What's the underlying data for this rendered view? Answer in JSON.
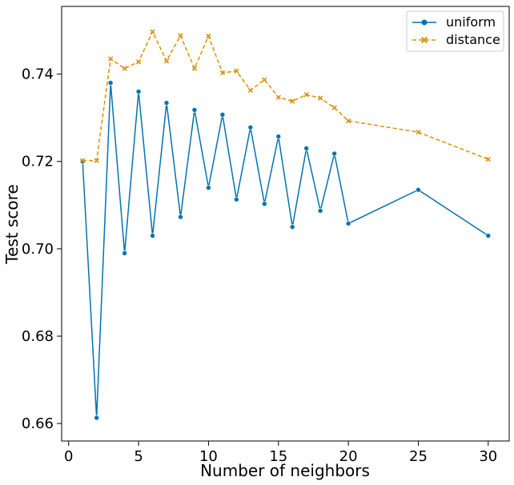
{
  "chart_data": {
    "type": "line",
    "xlabel": "Number of neighbors",
    "ylabel": "Test score",
    "xlim": [
      -0.5,
      31.5
    ],
    "ylim": [
      0.656,
      0.7555
    ],
    "xticks": [
      0,
      5,
      10,
      15,
      20,
      25,
      30
    ],
    "xtick_labels": [
      "0",
      "5",
      "10",
      "15",
      "20",
      "25",
      "30"
    ],
    "yticks": [
      0.66,
      0.68,
      0.7,
      0.72,
      0.74
    ],
    "ytick_labels": [
      "0.66",
      "0.68",
      "0.70",
      "0.72",
      "0.74"
    ],
    "grid": false,
    "legend_position": "top-right",
    "series": [
      {
        "name": "uniform",
        "color": "#0173b2",
        "marker": "circle",
        "linestyle": "solid",
        "x": [
          1,
          2,
          3,
          4,
          5,
          6,
          7,
          8,
          9,
          10,
          11,
          12,
          13,
          14,
          15,
          16,
          17,
          18,
          19,
          20,
          25,
          30
        ],
        "y": [
          0.72,
          0.6613,
          0.738,
          0.699,
          0.736,
          0.703,
          0.7334,
          0.7073,
          0.7318,
          0.714,
          0.7307,
          0.7113,
          0.7278,
          0.7103,
          0.7257,
          0.705,
          0.723,
          0.7087,
          0.7218,
          0.7058,
          0.7135,
          0.703
        ]
      },
      {
        "name": "distance",
        "color": "#de8f05",
        "marker": "x",
        "linestyle": "dashed",
        "x": [
          1,
          2,
          3,
          4,
          5,
          6,
          7,
          8,
          9,
          10,
          11,
          12,
          13,
          14,
          15,
          16,
          17,
          18,
          19,
          20,
          25,
          30
        ],
        "y": [
          0.7202,
          0.7202,
          0.7435,
          0.7413,
          0.7428,
          0.7497,
          0.743,
          0.7488,
          0.7413,
          0.7487,
          0.7403,
          0.7407,
          0.7363,
          0.7387,
          0.7347,
          0.7338,
          0.7353,
          0.7345,
          0.7323,
          0.7293,
          0.7267,
          0.7205
        ]
      }
    ]
  }
}
